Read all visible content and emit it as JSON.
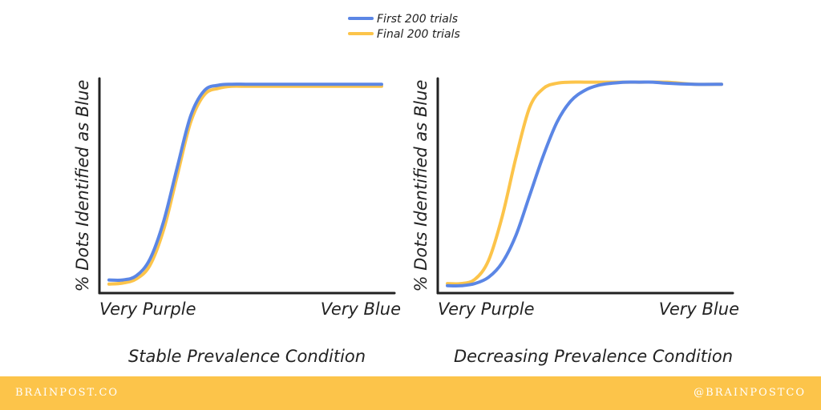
{
  "legend": {
    "series": [
      {
        "name": "First 200 trials",
        "color": "#5b86e5"
      },
      {
        "name": "Final 200 trials",
        "color": "#fcc44a"
      }
    ]
  },
  "footer": {
    "left_text": "BRAINPOST.CO",
    "right_text": "@BRAINPOSTCO",
    "background": "#fcc44a"
  },
  "chart_data": [
    {
      "type": "line",
      "title": "Stable Prevalence Condition",
      "ylabel": "% Dots Identified as Blue",
      "xtick_labels": [
        "Very Purple",
        "Very Blue"
      ],
      "ylim": [
        0,
        100
      ],
      "xlim": [
        0,
        100
      ],
      "grid": false,
      "series": [
        {
          "name": "First 200 trials",
          "color": "#5b86e5",
          "x": [
            0,
            5,
            10,
            15,
            20,
            25,
            30,
            35,
            40,
            45,
            50,
            55,
            60,
            70,
            80,
            90,
            100
          ],
          "y": [
            4,
            4,
            6,
            14,
            32,
            58,
            83,
            95,
            97.5,
            98,
            98,
            98,
            98,
            98,
            98,
            98,
            98
          ]
        },
        {
          "name": "Final 200 trials",
          "color": "#fcc44a",
          "x": [
            0,
            5,
            10,
            15,
            20,
            25,
            30,
            35,
            40,
            45,
            50,
            55,
            60,
            70,
            80,
            90,
            100
          ],
          "y": [
            2,
            2.5,
            4.5,
            11,
            28,
            54,
            80,
            93,
            96,
            97,
            97,
            97,
            97,
            97,
            97,
            97,
            97
          ]
        }
      ]
    },
    {
      "type": "line",
      "title": "Decreasing Prevalence Condition",
      "ylabel": "% Dots Identified as Blue",
      "xtick_labels": [
        "Very Purple",
        "Very Blue"
      ],
      "ylim": [
        0,
        100
      ],
      "xlim": [
        0,
        100
      ],
      "grid": false,
      "series": [
        {
          "name": "First 200 trials",
          "color": "#5b86e5",
          "x": [
            0,
            5,
            10,
            15,
            20,
            25,
            30,
            35,
            40,
            45,
            50,
            55,
            60,
            65,
            70,
            75,
            80,
            90,
            100
          ],
          "y": [
            2,
            2,
            3,
            6,
            13,
            26,
            45,
            64,
            80,
            90,
            95,
            97.5,
            98.5,
            99,
            99,
            99,
            98.5,
            98,
            98
          ]
        },
        {
          "name": "Final 200 trials",
          "color": "#fcc44a",
          "x": [
            0,
            5,
            10,
            15,
            20,
            25,
            30,
            35,
            40,
            45,
            50,
            55,
            60,
            70,
            80,
            90,
            100
          ],
          "y": [
            3,
            3,
            5,
            14,
            35,
            63,
            87,
            96,
            98.5,
            99,
            99,
            99,
            99,
            99,
            99,
            98,
            98
          ]
        }
      ]
    }
  ]
}
